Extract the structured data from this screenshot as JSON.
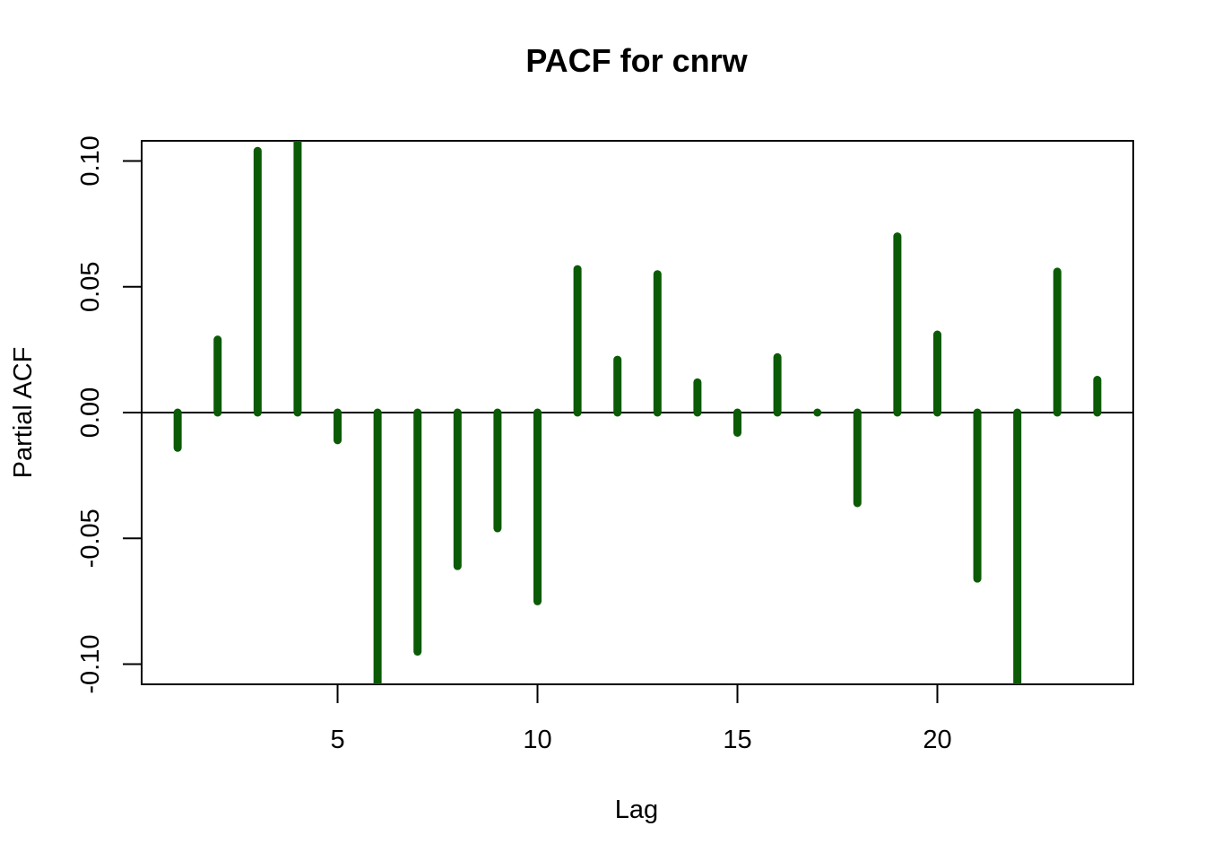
{
  "chart_data": {
    "type": "bar",
    "title": "PACF for cnrw",
    "xlabel": "Lag",
    "ylabel": "Partial ACF",
    "x": [
      1,
      2,
      3,
      4,
      5,
      6,
      7,
      8,
      9,
      10,
      11,
      12,
      13,
      14,
      15,
      16,
      17,
      18,
      19,
      20,
      21,
      22,
      23,
      24
    ],
    "values": [
      -0.014,
      0.029,
      0.104,
      0.109,
      -0.011,
      -0.112,
      -0.095,
      -0.061,
      -0.046,
      -0.075,
      0.057,
      0.021,
      0.055,
      0.012,
      -0.008,
      0.022,
      0.0,
      -0.036,
      0.07,
      0.031,
      -0.066,
      -0.112,
      0.056,
      0.013
    ],
    "xlim": [
      0.1,
      24.9
    ],
    "ylim": [
      -0.108,
      0.108
    ],
    "xticks": [
      "5",
      "10",
      "15",
      "20"
    ],
    "yticks": [
      "-0.10",
      "-0.05",
      "0.00",
      "0.05",
      "0.10"
    ],
    "zero_line": true,
    "grid": false,
    "bar_color": "#0b5a05"
  }
}
